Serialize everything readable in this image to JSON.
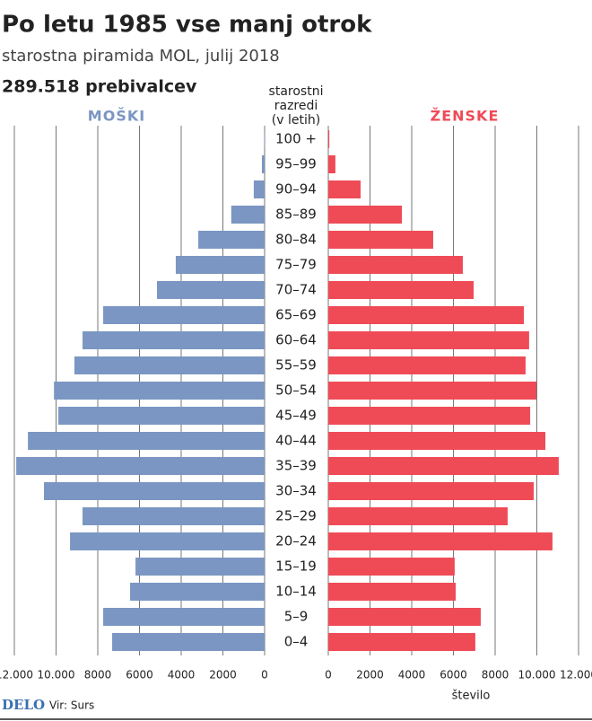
{
  "title": "Po letu 1985 vse manj otrok",
  "subtitle": "starostna piramida MOL, julij 2018",
  "annotation": "289.518 prebivalcev",
  "chart_data": {
    "type": "pyramid",
    "center_label": [
      "starostni",
      "razredi",
      "(v letih)"
    ],
    "x_label": "število",
    "categories": [
      "100 +",
      "95–99",
      "90–94",
      "85–89",
      "80–84",
      "75–79",
      "70–74",
      "65–69",
      "60–64",
      "55–59",
      "50–54",
      "45–49",
      "40–44",
      "35–39",
      "30–34",
      "25–29",
      "20–24",
      "15–19",
      "10–14",
      "5–9",
      "0–4"
    ],
    "series": [
      {
        "name": "MOŠKI",
        "color": "#7b96c2",
        "values": [
          15,
          130,
          520,
          1600,
          3180,
          4260,
          5160,
          7740,
          8730,
          9120,
          10100,
          9890,
          11350,
          11910,
          10580,
          8730,
          9330,
          6190,
          6450,
          7740,
          7310
        ]
      },
      {
        "name": "ŽENSKE",
        "color": "#ef4b57",
        "values": [
          50,
          340,
          1550,
          3530,
          5030,
          6450,
          6970,
          9380,
          9630,
          9460,
          9980,
          9680,
          10410,
          11050,
          9850,
          8600,
          10750,
          6060,
          6110,
          7310,
          7050
        ]
      }
    ],
    "xlim": [
      0,
      12000
    ],
    "xticks": [
      0,
      2000,
      4000,
      6000,
      8000,
      {
        "value": 10000,
        "label": "10.000"
      },
      {
        "value": 12000,
        "label": "12.000"
      }
    ],
    "grid": true
  },
  "footer": {
    "brand": "DELO",
    "source": "Vir: Surs"
  }
}
